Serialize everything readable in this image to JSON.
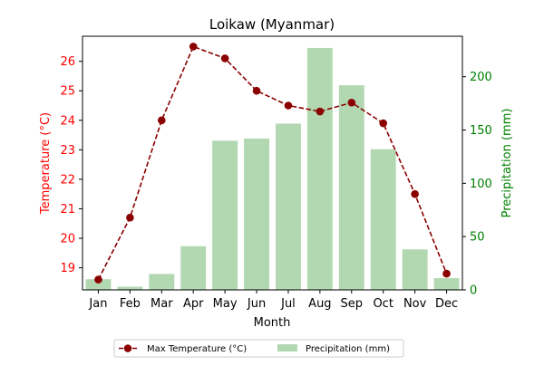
{
  "chart_data": {
    "type": "bar+line",
    "title": "Loikaw (Myanmar)",
    "xlabel": "Month",
    "ylabel_left": "Temperature (°C)",
    "ylabel_right": "Precipitation (mm)",
    "categories": [
      "Jan",
      "Feb",
      "Mar",
      "Apr",
      "May",
      "Jun",
      "Jul",
      "Aug",
      "Sep",
      "Oct",
      "Nov",
      "Dec"
    ],
    "series": [
      {
        "name": "Max Temperature (°C)",
        "kind": "line",
        "axis": "left",
        "values": [
          18.6,
          20.7,
          24.0,
          26.5,
          26.1,
          25.0,
          24.5,
          24.3,
          24.6,
          23.9,
          21.5,
          18.8
        ],
        "color": "#8b0000"
      },
      {
        "name": "Precipitation (mm)",
        "kind": "bar",
        "axis": "right",
        "values": [
          10,
          3,
          15,
          41,
          140,
          142,
          156,
          227,
          192,
          132,
          38,
          11
        ],
        "color": "#b2d8b2"
      }
    ],
    "ylim_left": [
      18.25,
      26.85
    ],
    "ylim_right": [
      0,
      238
    ],
    "yticks_left": [
      "19",
      "20",
      "21",
      "22",
      "23",
      "24",
      "25",
      "26"
    ],
    "yticks_right": [
      "0",
      "50",
      "100",
      "150",
      "200"
    ],
    "left_axis_color": "#ff0000",
    "right_axis_color": "#008000",
    "grid": false,
    "legend_position": "bottom-center"
  }
}
